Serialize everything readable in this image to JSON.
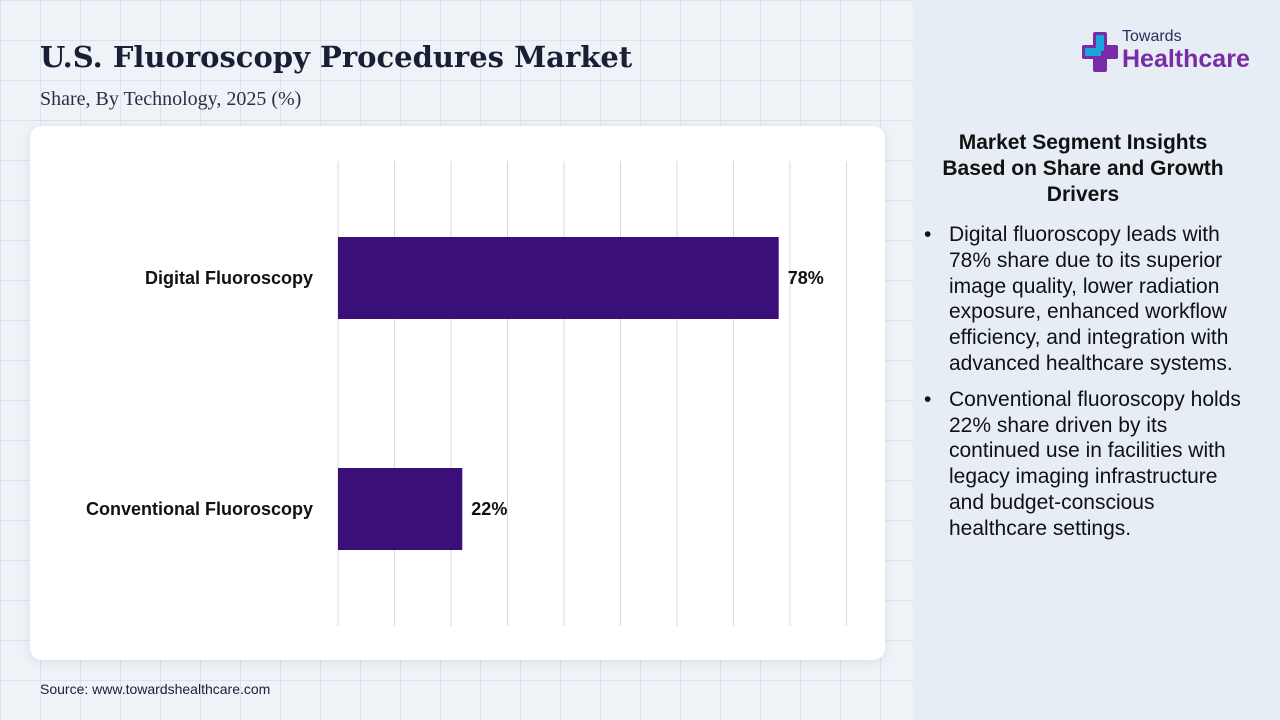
{
  "header": {
    "title": "U.S. Fluoroscopy Procedures Market",
    "subtitle": "Share, By Technology, 2025 (%)"
  },
  "logo": {
    "small": "Towards",
    "big": "Healthcare",
    "icon": "medical-cross-icon"
  },
  "insights": {
    "title": "Market Segment Insights Based on Share and Growth Drivers",
    "bullets": [
      "Digital fluoroscopy leads with 78% share due to its superior image quality, lower radiation exposure, enhanced workflow efficiency, and integration with advanced healthcare systems.",
      "Conventional fluoroscopy holds 22% share driven by its continued use in facilities with legacy imaging infrastructure and budget-conscious healthcare settings."
    ]
  },
  "source": "Source: www.towardshealthcare.com",
  "colors": {
    "bar": "#3b0f7a",
    "logo_accent": "#7a2ca6"
  },
  "chart_data": {
    "type": "bar",
    "orientation": "horizontal",
    "categories": [
      "Digital Fluoroscopy",
      "Conventional Fluoroscopy"
    ],
    "values": [
      78,
      22
    ],
    "value_labels": [
      "78%",
      "22%"
    ],
    "xlim": [
      0,
      90
    ],
    "grid": true,
    "title": "",
    "xlabel": "",
    "ylabel": ""
  }
}
